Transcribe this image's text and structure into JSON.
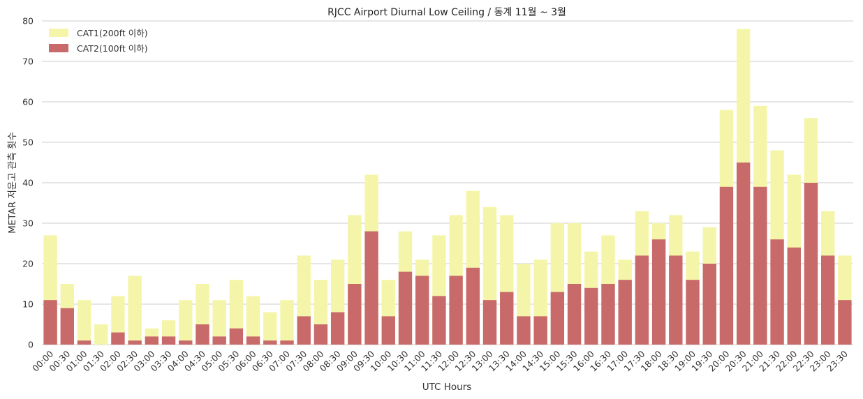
{
  "chart_data": {
    "type": "bar",
    "title": "RJCC Airport Diurnal Low Ceiling / 동계 11월 ~ 3월",
    "xlabel": "UTC Hours",
    "ylabel": "METAR 저운고 관측 횟수",
    "ylim": [
      0,
      80
    ],
    "yticks": [
      0,
      10,
      20,
      30,
      40,
      50,
      60,
      70,
      80
    ],
    "grid": "horizontal",
    "legend_position": "top-left",
    "categories": [
      "00:00",
      "00:30",
      "01:00",
      "01:30",
      "02:00",
      "02:30",
      "03:00",
      "03:30",
      "04:00",
      "04:30",
      "05:00",
      "05:30",
      "06:00",
      "06:30",
      "07:00",
      "07:30",
      "08:00",
      "08:30",
      "09:00",
      "09:30",
      "10:00",
      "10:30",
      "11:00",
      "11:30",
      "12:00",
      "12:30",
      "13:00",
      "13:30",
      "14:00",
      "14:30",
      "15:00",
      "15:30",
      "16:00",
      "16:30",
      "17:00",
      "17:30",
      "18:00",
      "18:30",
      "19:00",
      "19:30",
      "20:00",
      "20:30",
      "21:00",
      "21:30",
      "22:00",
      "22:30",
      "23:00",
      "23:30"
    ],
    "series": [
      {
        "name": "CAT1(200ft 이하)",
        "color": "#f5f5aa",
        "values": [
          27,
          15,
          11,
          5,
          12,
          17,
          4,
          6,
          11,
          15,
          11,
          16,
          12,
          8,
          11,
          22,
          16,
          21,
          32,
          42,
          16,
          28,
          21,
          27,
          32,
          38,
          34,
          32,
          20,
          21,
          30,
          30,
          23,
          27,
          21,
          33,
          30,
          32,
          23,
          29,
          58,
          78,
          59,
          48,
          42,
          56,
          33,
          22
        ]
      },
      {
        "name": "CAT2(100ft 이하)",
        "color": "#c8696a",
        "values": [
          11,
          9,
          1,
          0,
          3,
          1,
          2,
          2,
          1,
          5,
          2,
          4,
          2,
          1,
          1,
          7,
          5,
          8,
          15,
          28,
          7,
          18,
          17,
          12,
          17,
          19,
          11,
          13,
          7,
          7,
          13,
          15,
          14,
          15,
          16,
          22,
          26,
          22,
          16,
          20,
          39,
          45,
          39,
          26,
          24,
          40,
          22,
          11
        ]
      }
    ]
  }
}
